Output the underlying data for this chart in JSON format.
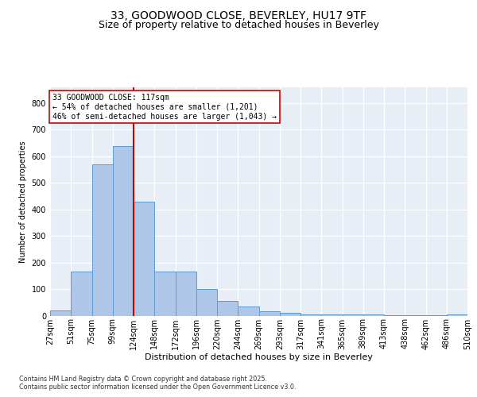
{
  "title1": "33, GOODWOOD CLOSE, BEVERLEY, HU17 9TF",
  "title2": "Size of property relative to detached houses in Beverley",
  "xlabel": "Distribution of detached houses by size in Beverley",
  "ylabel": "Number of detached properties",
  "footnote": "Contains HM Land Registry data © Crown copyright and database right 2025.\nContains public sector information licensed under the Open Government Licence v3.0.",
  "bin_labels": [
    "27sqm",
    "51sqm",
    "75sqm",
    "99sqm",
    "124sqm",
    "148sqm",
    "172sqm",
    "196sqm",
    "220sqm",
    "244sqm",
    "269sqm",
    "293sqm",
    "317sqm",
    "341sqm",
    "365sqm",
    "389sqm",
    "413sqm",
    "438sqm",
    "462sqm",
    "486sqm",
    "510sqm"
  ],
  "bar_values": [
    20,
    165,
    570,
    640,
    430,
    165,
    165,
    100,
    55,
    35,
    15,
    10,
    5,
    5,
    3,
    3,
    2,
    1,
    1,
    5
  ],
  "bar_color": "#aec6e8",
  "bar_edge_color": "#5b9bd5",
  "vline_color": "#cc0000",
  "vline_bar_index": 3,
  "annotation_text": "33 GOODWOOD CLOSE: 117sqm\n← 54% of detached houses are smaller (1,201)\n46% of semi-detached houses are larger (1,043) →",
  "ylim": [
    0,
    860
  ],
  "yticks": [
    0,
    100,
    200,
    300,
    400,
    500,
    600,
    700,
    800
  ],
  "bg_color": "#e8eef6",
  "grid_color": "#ffffff",
  "title1_fontsize": 10,
  "title2_fontsize": 9,
  "ylabel_fontsize": 7,
  "xlabel_fontsize": 8,
  "tick_fontsize": 7,
  "annot_fontsize": 7
}
